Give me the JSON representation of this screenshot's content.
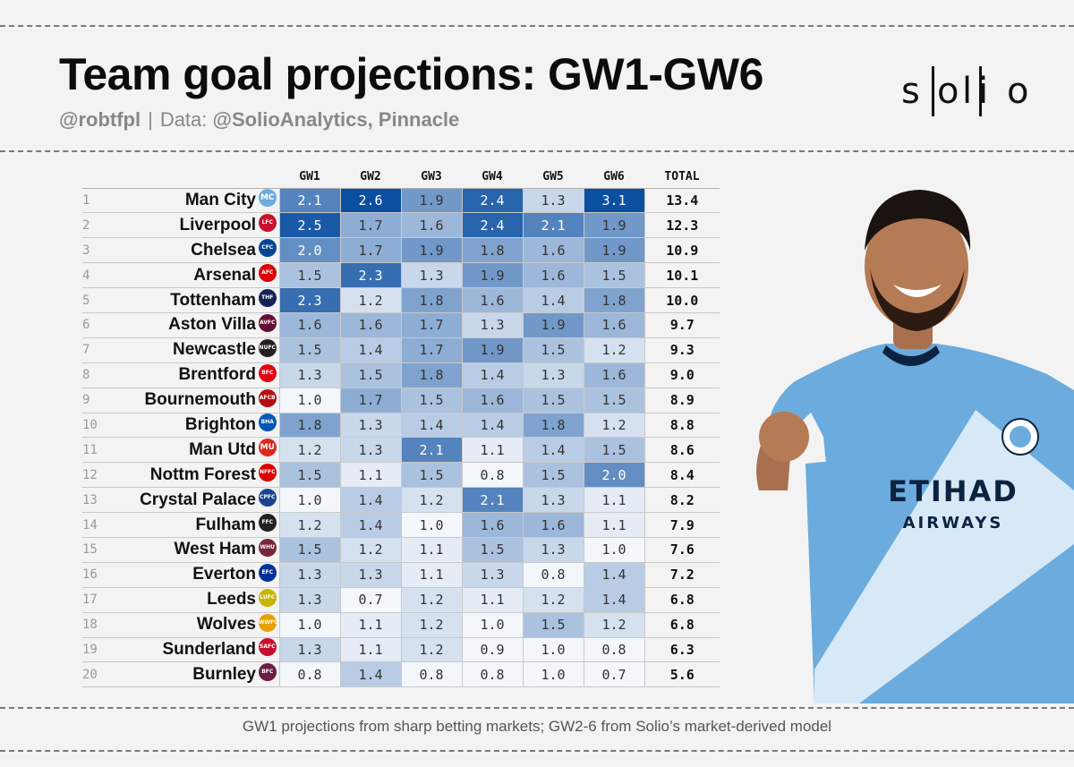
{
  "header": {
    "title": "Team goal projections: GW1-GW6",
    "author": "@robtfpl",
    "separator": "|",
    "data_label": "Data:",
    "data_source": "@SolioAnalytics, Pinnacle"
  },
  "logo": {
    "letters": [
      "s",
      "o",
      "l",
      "i",
      "o"
    ]
  },
  "footnote": "GW1 projections from sharp betting markets; GW2-6 from Solio’s market-derived model",
  "colors": {
    "background": "#f3f3f3",
    "scale_low": "#f3f6fb",
    "scale_high": "#0b4fa1",
    "kit_blue": "#6cabdd"
  },
  "player": {
    "sponsor_line1": "ETIHAD",
    "sponsor_line2": "AIRWAYS"
  },
  "chart_data": {
    "type": "table",
    "columns": [
      "GW1",
      "GW2",
      "GW3",
      "GW4",
      "GW5",
      "GW6",
      "TOTAL"
    ],
    "rows": [
      {
        "rank": "1",
        "team": "Man City",
        "crest": "MC",
        "crest_color": "#6cabdd",
        "values": [
          "2.1",
          "2.6",
          "1.9",
          "2.4",
          "1.3",
          "3.1"
        ],
        "total": "13.4"
      },
      {
        "rank": "2",
        "team": "Liverpool",
        "crest": "LFC",
        "crest_color": "#c8102e",
        "values": [
          "2.5",
          "1.7",
          "1.6",
          "2.4",
          "2.1",
          "1.9"
        ],
        "total": "12.3"
      },
      {
        "rank": "3",
        "team": "Chelsea",
        "crest": "CFC",
        "crest_color": "#034694",
        "values": [
          "2.0",
          "1.7",
          "1.9",
          "1.8",
          "1.6",
          "1.9"
        ],
        "total": "10.9"
      },
      {
        "rank": "4",
        "team": "Arsenal",
        "crest": "AFC",
        "crest_color": "#db0007",
        "values": [
          "1.5",
          "2.3",
          "1.3",
          "1.9",
          "1.6",
          "1.5"
        ],
        "total": "10.1"
      },
      {
        "rank": "5",
        "team": "Tottenham",
        "crest": "THF",
        "crest_color": "#132257",
        "values": [
          "2.3",
          "1.2",
          "1.8",
          "1.6",
          "1.4",
          "1.8"
        ],
        "total": "10.0"
      },
      {
        "rank": "6",
        "team": "Aston Villa",
        "crest": "AVFC",
        "crest_color": "#670e36",
        "values": [
          "1.6",
          "1.6",
          "1.7",
          "1.3",
          "1.9",
          "1.6"
        ],
        "total": "9.7"
      },
      {
        "rank": "7",
        "team": "Newcastle",
        "crest": "NUFC",
        "crest_color": "#241f20",
        "values": [
          "1.5",
          "1.4",
          "1.7",
          "1.9",
          "1.5",
          "1.2"
        ],
        "total": "9.3"
      },
      {
        "rank": "8",
        "team": "Brentford",
        "crest": "BFC",
        "crest_color": "#e30613",
        "values": [
          "1.3",
          "1.5",
          "1.8",
          "1.4",
          "1.3",
          "1.6"
        ],
        "total": "9.0"
      },
      {
        "rank": "9",
        "team": "Bournemouth",
        "crest": "AFCB",
        "crest_color": "#b50e12",
        "values": [
          "1.0",
          "1.7",
          "1.5",
          "1.6",
          "1.5",
          "1.5"
        ],
        "total": "8.9"
      },
      {
        "rank": "10",
        "team": "Brighton",
        "crest": "BHA",
        "crest_color": "#0057b8",
        "values": [
          "1.8",
          "1.3",
          "1.4",
          "1.4",
          "1.8",
          "1.2"
        ],
        "total": "8.8"
      },
      {
        "rank": "11",
        "team": "Man Utd",
        "crest": "MU",
        "crest_color": "#da291c",
        "values": [
          "1.2",
          "1.3",
          "2.1",
          "1.1",
          "1.4",
          "1.5"
        ],
        "total": "8.6"
      },
      {
        "rank": "12",
        "team": "Nottm Forest",
        "crest": "NFFC",
        "crest_color": "#dd0000",
        "values": [
          "1.5",
          "1.1",
          "1.5",
          "0.8",
          "1.5",
          "2.0"
        ],
        "total": "8.4"
      },
      {
        "rank": "13",
        "team": "Crystal Palace",
        "crest": "CPFC",
        "crest_color": "#1b458f",
        "values": [
          "1.0",
          "1.4",
          "1.2",
          "2.1",
          "1.3",
          "1.1"
        ],
        "total": "8.2"
      },
      {
        "rank": "14",
        "team": "Fulham",
        "crest": "FFC",
        "crest_color": "#222222",
        "values": [
          "1.2",
          "1.4",
          "1.0",
          "1.6",
          "1.6",
          "1.1"
        ],
        "total": "7.9"
      },
      {
        "rank": "15",
        "team": "West Ham",
        "crest": "WHU",
        "crest_color": "#7a263a",
        "values": [
          "1.5",
          "1.2",
          "1.1",
          "1.5",
          "1.3",
          "1.0"
        ],
        "total": "7.6"
      },
      {
        "rank": "16",
        "team": "Everton",
        "crest": "EFC",
        "crest_color": "#003399",
        "values": [
          "1.3",
          "1.3",
          "1.1",
          "1.3",
          "0.8",
          "1.4"
        ],
        "total": "7.2"
      },
      {
        "rank": "17",
        "team": "Leeds",
        "crest": "LUFC",
        "crest_color": "#c8b400",
        "values": [
          "1.3",
          "0.7",
          "1.2",
          "1.1",
          "1.2",
          "1.4"
        ],
        "total": "6.8"
      },
      {
        "rank": "18",
        "team": "Wolves",
        "crest": "WWFC",
        "crest_color": "#e8a200",
        "values": [
          "1.0",
          "1.1",
          "1.2",
          "1.0",
          "1.5",
          "1.2"
        ],
        "total": "6.8"
      },
      {
        "rank": "19",
        "team": "Sunderland",
        "crest": "SAFC",
        "crest_color": "#c8102e",
        "values": [
          "1.3",
          "1.1",
          "1.2",
          "0.9",
          "1.0",
          "0.8"
        ],
        "total": "6.3"
      },
      {
        "rank": "20",
        "team": "Burnley",
        "crest": "BFC",
        "crest_color": "#6c1d45",
        "values": [
          "0.8",
          "1.4",
          "0.8",
          "0.8",
          "1.0",
          "0.7"
        ],
        "total": "5.6"
      }
    ]
  }
}
